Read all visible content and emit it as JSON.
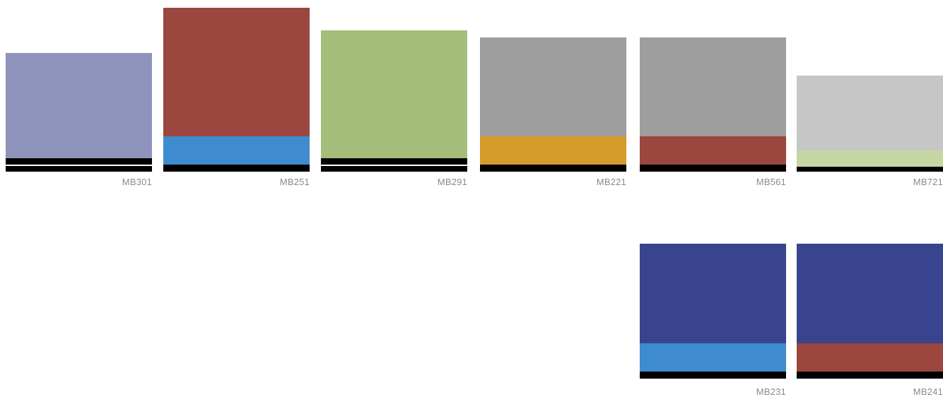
{
  "swatches": [
    {
      "id": "mb301",
      "name": "MB301",
      "bands": [
        {
          "color": "#8e93bb",
          "h": 149
        },
        {
          "color": "#000000",
          "h": 9
        },
        {
          "color": "#ffffff",
          "h": 2
        },
        {
          "color": "#000000",
          "h": 8
        }
      ]
    },
    {
      "id": "mb251",
      "name": "MB251",
      "bands": [
        {
          "color": "#9b463e",
          "h": 182
        },
        {
          "color": "#3e8bcd",
          "h": 40
        },
        {
          "color": "#000000",
          "h": 10
        }
      ]
    },
    {
      "id": "mb291",
      "name": "MB291",
      "bands": [
        {
          "color": "#a4bd79",
          "h": 181
        },
        {
          "color": "#000000",
          "h": 9
        },
        {
          "color": "#ffffff",
          "h": 2
        },
        {
          "color": "#000000",
          "h": 8
        }
      ]
    },
    {
      "id": "mb221",
      "name": "MB221",
      "bands": [
        {
          "color": "#9e9e9e",
          "h": 140
        },
        {
          "color": "#d49a2a",
          "h": 40
        },
        {
          "color": "#000000",
          "h": 10
        }
      ]
    },
    {
      "id": "mb561",
      "name": "MB561",
      "bands": [
        {
          "color": "#9e9e9e",
          "h": 140
        },
        {
          "color": "#9b463e",
          "h": 40
        },
        {
          "color": "#000000",
          "h": 10
        }
      ]
    },
    {
      "id": "mb721",
      "name": "MB721",
      "bands": [
        {
          "color": "#c6c6c6",
          "h": 106
        },
        {
          "color": "#c5d6a5",
          "h": 23
        },
        {
          "color": "#000000",
          "h": 7
        }
      ]
    },
    {
      "id": "mb231",
      "name": "MB231",
      "bands": [
        {
          "color": "#38448e",
          "h": 141
        },
        {
          "color": "#3e8bcd",
          "h": 40
        },
        {
          "color": "#000000",
          "h": 10
        }
      ]
    },
    {
      "id": "mb241",
      "name": "MB241",
      "bands": [
        {
          "color": "#38448e",
          "h": 141
        },
        {
          "color": "#9b463e",
          "h": 40
        },
        {
          "color": "#000000",
          "h": 10
        }
      ]
    }
  ]
}
